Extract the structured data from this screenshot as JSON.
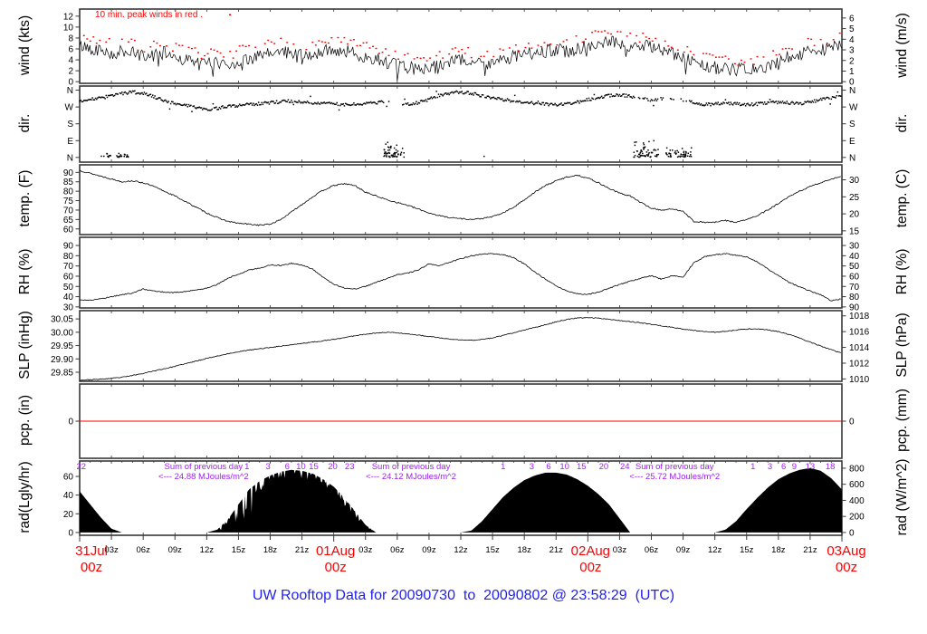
{
  "title": "UW Rooftop Data for 20090730  to  20090802 @ 23:58:29  (UTC)",
  "colors": {
    "trace": "#000000",
    "peak_wind_red": "#ff0000",
    "pcp_zero_line_red": "#ff0000",
    "date_label_red": "#ff0000",
    "annotation_purple": "#a020f0",
    "title_blue": "#2222ee",
    "frame": "#383838"
  },
  "x_axis": {
    "hours_span": 72,
    "minor_ticks": [
      {
        "h": 3,
        "label": "03z"
      },
      {
        "h": 6,
        "label": "06z"
      },
      {
        "h": 9,
        "label": "09z"
      },
      {
        "h": 12,
        "label": "12z"
      },
      {
        "h": 15,
        "label": "15z"
      },
      {
        "h": 18,
        "label": "18z"
      },
      {
        "h": 21,
        "label": "21z"
      },
      {
        "h": 27,
        "label": "03z"
      },
      {
        "h": 30,
        "label": "06z"
      },
      {
        "h": 33,
        "label": "09z"
      },
      {
        "h": 36,
        "label": "12z"
      },
      {
        "h": 39,
        "label": "15z"
      },
      {
        "h": 42,
        "label": "18z"
      },
      {
        "h": 45,
        "label": "21z"
      },
      {
        "h": 51,
        "label": "03z"
      },
      {
        "h": 54,
        "label": "06z"
      },
      {
        "h": 57,
        "label": "09z"
      },
      {
        "h": 60,
        "label": "12z"
      },
      {
        "h": 63,
        "label": "15z"
      },
      {
        "h": 66,
        "label": "18z"
      },
      {
        "h": 69,
        "label": "21z"
      }
    ],
    "major_ticks": [
      {
        "h": 0,
        "line1": "31Jul",
        "line2": "00z",
        "dx": 13
      },
      {
        "h": 24,
        "line1": "01Aug",
        "line2": "00z",
        "dx": 2
      },
      {
        "h": 48,
        "line1": "02Aug",
        "line2": "00z",
        "dx": 3
      },
      {
        "h": 72,
        "line1": "03Aug",
        "line2": "00z",
        "dx": 5
      }
    ]
  },
  "chart_data": {
    "type": "meteogram-multi-panel",
    "x_unit": "hours since 31 Jul 2009 00z (hourly samples, 0..72)",
    "panels": [
      {
        "key": "wind",
        "type": "line+peakdots",
        "series_key": "wind_kts_mean",
        "ylabel_left": "wind (kts)",
        "ylabel_right": "wind (m/s)",
        "note": "10 min. peak winds in red .",
        "ylim_left": [
          -0.3,
          13.3
        ],
        "ylim_right": [
          -0.154,
          6.842
        ],
        "ytick_vals_left": [
          0,
          2,
          4,
          6,
          8,
          10,
          12
        ],
        "ytick_labels_left": [
          "0",
          "2",
          "4",
          "6",
          "8",
          "10",
          "12"
        ],
        "ytick_vals_right": [
          0,
          1,
          2,
          3,
          4,
          5,
          6
        ],
        "ytick_labels_right": [
          "0",
          "1",
          "2",
          "3",
          "4",
          "5",
          "6"
        ]
      },
      {
        "key": "dir",
        "type": "scatter",
        "series_key": "dir_deg",
        "ylabel_left": "dir.",
        "ylabel_right": "dir.",
        "ylim_left": [
          -25,
          382
        ],
        "ylim_right": [
          -25,
          382
        ],
        "ytick_vals_left": [
          360,
          270,
          180,
          90,
          0
        ],
        "ytick_labels_left": [
          "N",
          "W",
          "S",
          "E",
          "N"
        ],
        "ytick_vals_right": [
          360,
          270,
          180,
          90,
          0
        ],
        "ytick_labels_right": [
          "N",
          "W",
          "S",
          "E",
          "N"
        ]
      },
      {
        "key": "temp",
        "type": "line",
        "series_key": "temp_f",
        "ylabel_left": "temp. (F)",
        "ylabel_right": "temp. (C)",
        "ylim_left": [
          57,
          94
        ],
        "ylim_right": [
          13.9,
          34.4
        ],
        "ytick_vals_left": [
          60,
          65,
          70,
          75,
          80,
          85,
          90
        ],
        "ytick_labels_left": [
          "60",
          "65",
          "70",
          "75",
          "80",
          "85",
          "90"
        ],
        "ytick_vals_right": [
          15,
          20,
          25,
          30
        ],
        "ytick_labels_right": [
          "15",
          "20",
          "25",
          "30"
        ]
      },
      {
        "key": "rh",
        "type": "line",
        "series_key": "rh_pct",
        "ylabel_left": "RH (%)",
        "ylabel_right": "RH (%)",
        "ylim_left": [
          29,
          98
        ],
        "ylim_right": [
          29,
          98
        ],
        "ytick_vals_left": [
          30,
          40,
          50,
          60,
          70,
          80,
          90
        ],
        "ytick_labels_left": [
          "30",
          "40",
          "50",
          "60",
          "70",
          "80",
          "90"
        ],
        "ytick_vals_right": [
          30,
          40,
          50,
          60,
          70,
          80,
          90
        ],
        "ytick_labels_right": [
          "90",
          "80",
          "70",
          "60",
          "50",
          "40",
          "30"
        ]
      },
      {
        "key": "slp",
        "type": "line",
        "series_key": "slp_inhg",
        "ylabel_left": "SLP (inHg)",
        "ylabel_right": "SLP (hPa)",
        "ylim_left": [
          29.816,
          30.081
        ],
        "ylim_right": [
          1009.7,
          1018.66
        ],
        "ytick_vals_left": [
          29.85,
          29.9,
          29.95,
          30.0,
          30.05
        ],
        "ytick_labels_left": [
          "29.85",
          "29.90",
          "29.95",
          "30.00",
          "30.05"
        ],
        "ytick_vals_right": [
          1010,
          1012,
          1014,
          1016,
          1018
        ],
        "ytick_labels_right": [
          "1010",
          "1012",
          "1014",
          "1016",
          "1018"
        ]
      },
      {
        "key": "pcp",
        "type": "zero-line",
        "series_key": "pcp_in",
        "ylabel_left": "pcp. (in)",
        "ylabel_right": "pcp. (mm)",
        "ylim_left": [
          -1,
          1
        ],
        "ylim_right": [
          -1,
          1
        ],
        "ytick_vals_left": [
          0
        ],
        "ytick_labels_left": [
          "0"
        ],
        "ytick_vals_right": [
          0
        ],
        "ytick_labels_right": [
          "0"
        ]
      },
      {
        "key": "rad",
        "type": "area",
        "series_key": "rad_lgly_hr",
        "ylabel_left": "rad(Lgly/hr)",
        "ylabel_right": "rad (W/m^2)",
        "ylim_left": [
          -3,
          76.5
        ],
        "ylim_right": [
          -34.9,
          889.7
        ],
        "ytick_vals_left": [
          0,
          20,
          40,
          60
        ],
        "ytick_labels_left": [
          "0",
          "20",
          "40",
          "60"
        ],
        "ytick_vals_right": [
          0,
          200,
          400,
          600,
          800
        ],
        "ytick_labels_right": [
          "0",
          "200",
          "400",
          "600",
          "800"
        ]
      }
    ],
    "series": {
      "wind_kts_mean": [
        6.5,
        6.2,
        5.8,
        5.2,
        5.6,
        5.2,
        4.6,
        4.9,
        5.3,
        4.6,
        4.0,
        3.6,
        3.3,
        3.6,
        3.1,
        3.9,
        4.3,
        4.6,
        5.1,
        5.6,
        5.3,
        4.9,
        5.1,
        5.6,
        5.9,
        5.6,
        5.1,
        4.6,
        4.3,
        3.6,
        2.9,
        2.6,
        2.3,
        2.6,
        3.1,
        3.6,
        3.9,
        3.6,
        3.3,
        3.6,
        4.1,
        4.6,
        4.9,
        5.3,
        5.6,
        5.9,
        5.6,
        6.1,
        6.6,
        7.1,
        7.4,
        7.1,
        6.6,
        6.3,
        6.6,
        5.9,
        5.1,
        4.1,
        3.6,
        3.1,
        2.6,
        2.3,
        2.1,
        2.3,
        2.1,
        2.6,
        3.6,
        4.6,
        5.1,
        5.6,
        6.1,
        6.3,
        6.6
      ],
      "wind_peak_offset_kts": 1.7,
      "dir_deg": [
        305,
        310,
        318,
        330,
        342,
        350,
        342,
        325,
        305,
        288,
        278,
        268,
        258,
        262,
        272,
        278,
        283,
        288,
        293,
        298,
        302,
        298,
        293,
        290,
        287,
        283,
        286,
        290,
        294,
        298,
        290,
        286,
        292,
        312,
        332,
        345,
        350,
        344,
        330,
        320,
        310,
        302,
        296,
        290,
        286,
        282,
        286,
        296,
        310,
        320,
        330,
        334,
        328,
        318,
        308,
        314,
        318,
        308,
        292,
        282,
        286,
        290,
        286,
        282,
        286,
        292,
        296,
        292,
        288,
        296,
        310,
        318,
        328
      ],
      "temp_f": [
        91,
        89.5,
        88,
        86.5,
        85,
        85.5,
        84.5,
        82.5,
        80,
        77.5,
        74.5,
        71.5,
        68.5,
        66,
        64,
        63,
        62.5,
        62,
        62.5,
        65,
        69,
        73,
        77,
        80.5,
        83,
        84,
        83,
        79.5,
        77.5,
        75.5,
        74,
        72.5,
        70.5,
        68.5,
        67,
        66,
        65.5,
        65,
        65.5,
        66.5,
        68.5,
        71.5,
        75.5,
        79.5,
        83,
        85.5,
        87.5,
        88.5,
        87,
        84.5,
        81.5,
        79,
        77.5,
        74,
        71,
        70,
        70.5,
        69.5,
        64,
        63.5,
        63.5,
        64.5,
        63.5,
        65,
        67,
        70,
        73.5,
        77,
        80,
        82.5,
        84.5,
        86.5,
        88
      ],
      "rh_pct": [
        37,
        36.5,
        38,
        40,
        42,
        43.5,
        47.5,
        45.5,
        44.5,
        44,
        45,
        46.5,
        48.5,
        52,
        58,
        62,
        66,
        68,
        71,
        70.5,
        72.5,
        71,
        67,
        59,
        52,
        48.5,
        47.5,
        50,
        54,
        57.5,
        61.5,
        63,
        66,
        72,
        70,
        74,
        77,
        80,
        81.5,
        82,
        81,
        78,
        72,
        64,
        57,
        50.5,
        45.5,
        43,
        42,
        44.5,
        48,
        52,
        55,
        58,
        60.5,
        57,
        60.5,
        59,
        73,
        79,
        81,
        82,
        80.5,
        79,
        74,
        67,
        60.5,
        54,
        49.5,
        45.5,
        42,
        36,
        38
      ],
      "slp_inhg": [
        29.82,
        29.822,
        29.824,
        29.827,
        29.831,
        29.838,
        29.846,
        29.855,
        29.863,
        29.872,
        29.882,
        29.892,
        29.902,
        29.911,
        29.919,
        29.927,
        29.933,
        29.938,
        29.943,
        29.948,
        29.953,
        29.958,
        29.963,
        29.968,
        29.973,
        29.98,
        29.987,
        29.993,
        29.997,
        30.0,
        29.998,
        29.994,
        29.989,
        29.984,
        29.979,
        29.974,
        29.971,
        29.97,
        29.973,
        29.979,
        29.988,
        29.998,
        30.008,
        30.018,
        30.028,
        30.039,
        30.048,
        30.053,
        30.055,
        30.053,
        30.049,
        30.044,
        30.04,
        30.035,
        30.03,
        30.024,
        30.018,
        30.012,
        30.007,
        30.003,
        30.0,
        30.003,
        30.008,
        30.012,
        30.013,
        30.009,
        30.002,
        29.992,
        29.978,
        29.963,
        29.948,
        29.934,
        29.921
      ],
      "pcp_in": 0,
      "rad_lgly_hr": [
        44,
        30,
        16,
        4,
        0,
        0,
        0,
        0,
        0,
        0,
        0,
        0,
        0,
        3,
        14,
        30,
        46,
        55,
        61,
        65,
        67,
        66,
        63,
        57,
        49,
        37,
        23,
        8,
        0,
        0,
        0,
        0,
        0,
        0,
        0,
        0,
        0,
        2,
        12,
        25,
        38,
        48,
        56,
        61,
        64,
        64,
        62,
        57,
        50,
        41,
        30,
        15,
        0,
        0,
        0,
        0,
        0,
        0,
        0,
        0,
        0,
        3,
        12,
        25,
        37,
        48,
        57,
        63,
        67,
        69,
        66,
        58,
        46
      ]
    },
    "dir_clusters": [
      {
        "from": 2.0,
        "to": 4.6,
        "count": 28,
        "base": 2,
        "spread": 30
      },
      {
        "from": 28.7,
        "to": 30.8,
        "count": 55,
        "base": 2,
        "spread": 95
      },
      {
        "from": 52.3,
        "to": 54.8,
        "count": 60,
        "base": 2,
        "spread": 100
      },
      {
        "from": 55.3,
        "to": 57.8,
        "count": 45,
        "base": 2,
        "spread": 75
      }
    ],
    "dir_gaps": [
      [
        28.8,
        30.5,
        0.85
      ],
      [
        52.3,
        57.8,
        0.45
      ]
    ],
    "rad_annotations": {
      "sums": [
        {
          "h_center": 11.7,
          "line1": "Sum of previous day",
          "line2": "<--- 24.88 MJoules/m^2"
        },
        {
          "h_center": 31.3,
          "line1": "Sum of previous day",
          "line2": "<--- 24.12 MJoules/m^2"
        },
        {
          "h_center": 56.2,
          "line1": "Sum of previous day",
          "line2": "<--- 25.72 MJoules/m^2"
        }
      ],
      "cumulative_markers": [
        {
          "h": 0.15,
          "t": "22"
        },
        {
          "h": 15.8,
          "t": "1"
        },
        {
          "h": 17.8,
          "t": "3"
        },
        {
          "h": 19.6,
          "t": "6"
        },
        {
          "h": 20.9,
          "t": "10"
        },
        {
          "h": 22.1,
          "t": "15"
        },
        {
          "h": 23.9,
          "t": "20"
        },
        {
          "h": 25.5,
          "t": "23"
        },
        {
          "h": 40.0,
          "t": "1"
        },
        {
          "h": 42.7,
          "t": "3"
        },
        {
          "h": 44.3,
          "t": "6"
        },
        {
          "h": 45.8,
          "t": "10"
        },
        {
          "h": 47.4,
          "t": "15"
        },
        {
          "h": 49.5,
          "t": "20"
        },
        {
          "h": 51.5,
          "t": "24"
        },
        {
          "h": 63.6,
          "t": "1"
        },
        {
          "h": 65.2,
          "t": "3"
        },
        {
          "h": 66.5,
          "t": "6"
        },
        {
          "h": 67.5,
          "t": "9"
        },
        {
          "h": 69.0,
          "t": "13"
        },
        {
          "h": 70.9,
          "t": "18"
        }
      ]
    }
  }
}
